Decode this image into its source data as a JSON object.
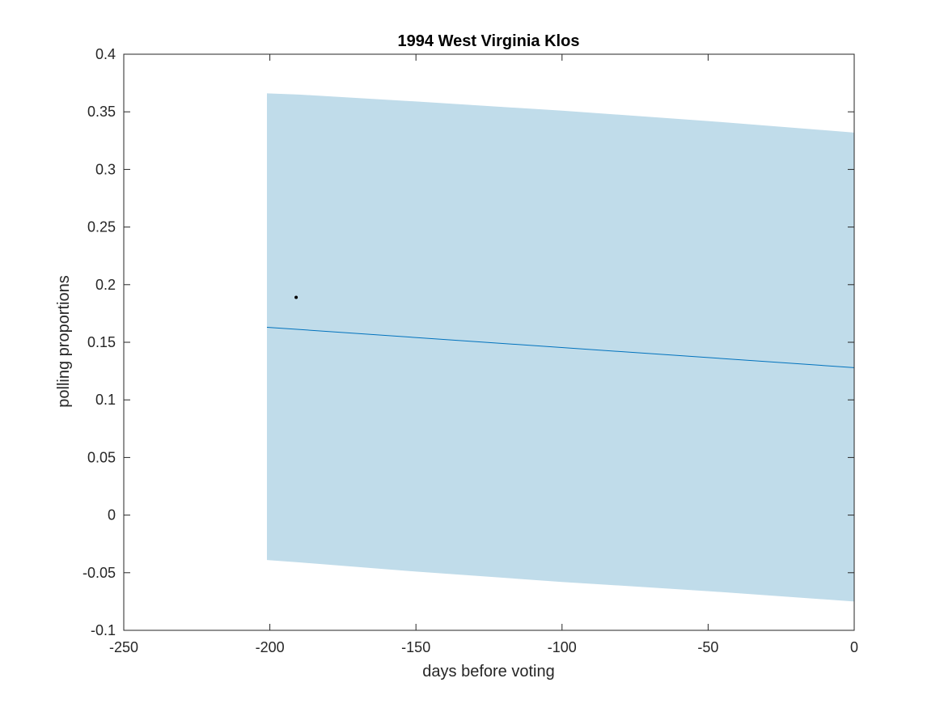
{
  "chart_data": {
    "type": "line",
    "title": "1994 West Virginia Klos",
    "xlabel": "days before voting",
    "ylabel": "polling proportions",
    "xlim": [
      -250,
      0
    ],
    "ylim": [
      -0.1,
      0.4
    ],
    "xticks": [
      -250,
      -200,
      -150,
      -100,
      -50,
      0
    ],
    "yticks": [
      -0.1,
      -0.05,
      0,
      0.05,
      0.1,
      0.15,
      0.2,
      0.25,
      0.3,
      0.35,
      0.4
    ],
    "xtick_labels": [
      "-250",
      "-200",
      "-150",
      "-100",
      "-50",
      "0"
    ],
    "ytick_labels": [
      "-0.1",
      "-0.05",
      "0",
      "0.05",
      "0.1",
      "0.15",
      "0.2",
      "0.25",
      "0.3",
      "0.35",
      "0.4"
    ],
    "grid": false,
    "band": {
      "x": [
        -201,
        -190,
        -150,
        -100,
        -50,
        0
      ],
      "upper": [
        0.366,
        0.365,
        0.359,
        0.351,
        0.342,
        0.332
      ],
      "lower": [
        -0.039,
        -0.041,
        -0.049,
        -0.058,
        -0.066,
        -0.075
      ],
      "color": "#c0dcea"
    },
    "line": {
      "x": [
        -201,
        0
      ],
      "y": [
        0.163,
        0.128
      ],
      "color": "#0072bd"
    },
    "points": {
      "x": [
        -191
      ],
      "y": [
        0.189
      ],
      "color": "#000000"
    }
  }
}
